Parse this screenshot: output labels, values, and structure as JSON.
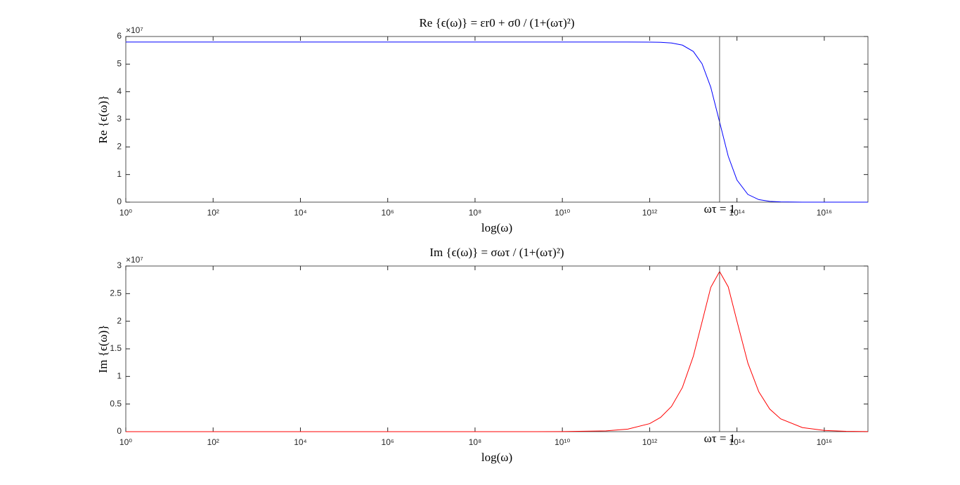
{
  "chart_data": [
    {
      "type": "line",
      "title": "Re {ϵ(ω)} = εr0 + σ0 / (1+(ωτ)²)",
      "xlabel": "log(ω)",
      "ylabel": "Re {ϵ(ω)}",
      "xscale": "log",
      "xlim": [
        1,
        1e+17
      ],
      "xticks": [
        {
          "value": 1,
          "label": "10⁰"
        },
        {
          "value": 100,
          "label": "10²"
        },
        {
          "value": 10000,
          "label": "10⁴"
        },
        {
          "value": 1000000,
          "label": "10⁶"
        },
        {
          "value": 100000000,
          "label": "10⁸"
        },
        {
          "value": 10000000000,
          "label": "10¹⁰"
        },
        {
          "value": 1000000000000,
          "label": "10¹²"
        },
        {
          "value": 100000000000000,
          "label": "10¹⁴"
        },
        {
          "value": 10000000000000000,
          "label": "10¹⁶"
        }
      ],
      "ylim": [
        0,
        6
      ],
      "yticks": [
        0,
        1,
        2,
        3,
        4,
        5,
        6
      ],
      "y_exponent_label": "×10⁷",
      "x": [
        1,
        10,
        100,
        1000,
        10000,
        100000,
        1000000,
        10000000,
        100000000,
        1000000000,
        10000000000,
        100000000000,
        316200000000,
        1000000000000,
        1778000000000,
        3162000000000,
        5623000000000,
        10000000000000,
        15850000000000,
        25120000000000,
        40000000000000,
        63100000000000,
        100000000000000,
        177800000000000,
        316200000000000,
        562300000000000,
        1000000000000000,
        3162000000000000,
        10000000000000000,
        31620000000000000,
        100000000000000000
      ],
      "values": [
        5.8,
        5.8,
        5.8,
        5.8,
        5.8,
        5.8,
        5.8,
        5.8,
        5.8,
        5.8,
        5.8,
        5.8,
        5.8,
        5.796,
        5.789,
        5.764,
        5.688,
        5.459,
        5.013,
        4.161,
        2.9,
        1.662,
        0.8,
        0.279,
        0.091,
        0.029,
        0.009,
        0.001,
        0,
        0,
        0
      ],
      "color": "#0000ff",
      "vline_x": 40000000000000,
      "annotation": "ωτ = 1",
      "box": true
    },
    {
      "type": "line",
      "title": "Im {ϵ(ω)} = σωτ / (1+(ωτ)²)",
      "xlabel": "log(ω)",
      "ylabel": "Im {ϵ(ω)}",
      "xscale": "log",
      "xlim": [
        1,
        1e+17
      ],
      "xticks": [
        {
          "value": 1,
          "label": "10⁰"
        },
        {
          "value": 100,
          "label": "10²"
        },
        {
          "value": 10000,
          "label": "10⁴"
        },
        {
          "value": 1000000,
          "label": "10⁶"
        },
        {
          "value": 100000000,
          "label": "10⁸"
        },
        {
          "value": 10000000000,
          "label": "10¹⁰"
        },
        {
          "value": 1000000000000,
          "label": "10¹²"
        },
        {
          "value": 100000000000000,
          "label": "10¹⁴"
        },
        {
          "value": 10000000000000000,
          "label": "10¹⁶"
        }
      ],
      "ylim": [
        0,
        3
      ],
      "yticks": [
        0,
        0.5,
        1,
        1.5,
        2,
        2.5,
        3
      ],
      "y_exponent_label": "×10⁷",
      "x": [
        1,
        10,
        100,
        1000,
        10000,
        100000,
        1000000,
        10000000,
        100000000,
        1000000000,
        10000000000,
        100000000000,
        316200000000,
        1000000000000,
        1778000000000,
        3162000000000,
        5623000000000,
        10000000000000,
        15850000000000,
        25120000000000,
        40000000000000,
        63100000000000,
        100000000000000,
        177800000000000,
        316200000000000,
        562300000000000,
        1000000000000000,
        3162000000000000,
        10000000000000000,
        31620000000000000,
        100000000000000000
      ],
      "values": [
        0,
        0,
        0,
        0,
        0,
        0,
        0,
        0,
        0,
        0,
        0.001,
        0.015,
        0.046,
        0.145,
        0.258,
        0.456,
        0.8,
        1.365,
        1.987,
        2.613,
        2.9,
        2.622,
        2.0,
        1.242,
        0.722,
        0.41,
        0.232,
        0.073,
        0.023,
        0.007,
        0.002
      ],
      "color": "#ff0000",
      "vline_x": 40000000000000,
      "annotation": "ωτ = 1",
      "box": true
    }
  ]
}
